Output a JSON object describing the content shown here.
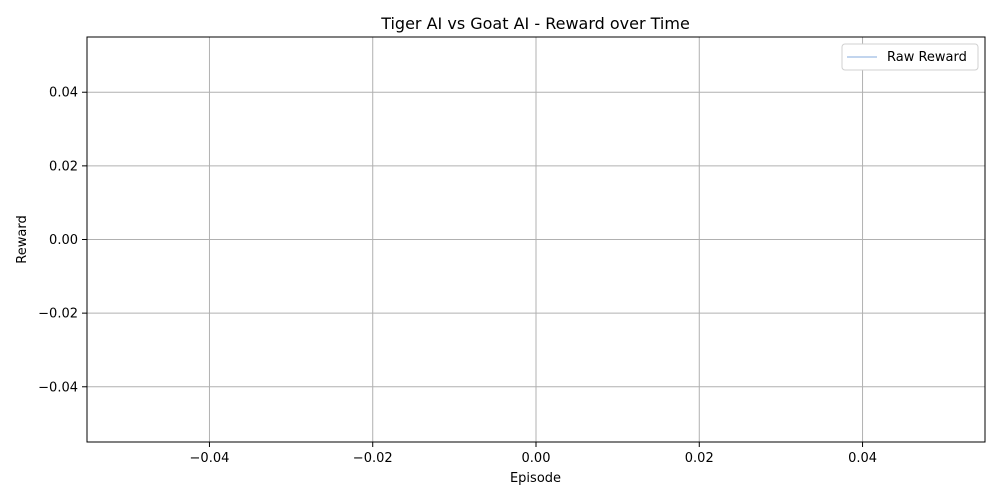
{
  "chart_data": {
    "type": "line",
    "title": "Tiger AI vs Goat AI - Reward over Time",
    "xlabel": "Episode",
    "ylabel": "Reward",
    "xlim": [
      -0.055,
      0.055
    ],
    "ylim": [
      -0.055,
      0.055
    ],
    "x_ticks": [
      -0.04,
      -0.02,
      0.0,
      0.02,
      0.04
    ],
    "x_tick_labels": [
      "−0.04",
      "−0.02",
      "0.00",
      "0.02",
      "0.04"
    ],
    "y_ticks": [
      -0.04,
      -0.02,
      0.0,
      0.02,
      0.04
    ],
    "y_tick_labels": [
      "−0.04",
      "−0.02",
      "0.00",
      "0.02",
      "0.04"
    ],
    "grid": true,
    "legend_position": "top-right",
    "series": [
      {
        "name": "Raw Reward",
        "x": [],
        "y": [],
        "color": "#aec7e8"
      }
    ]
  }
}
